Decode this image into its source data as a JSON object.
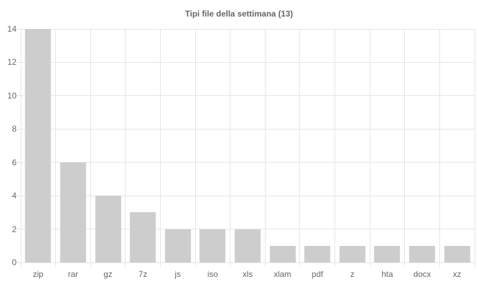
{
  "chart_data": {
    "type": "bar",
    "title": "Tipi file della settimana (13)",
    "categories": [
      "zip",
      "rar",
      "gz",
      "7z",
      "js",
      "iso",
      "xls",
      "xlam",
      "pdf",
      "z",
      "hta",
      "docx",
      "xz"
    ],
    "values": [
      14,
      6,
      4,
      3,
      2,
      2,
      2,
      1,
      1,
      1,
      1,
      1,
      1
    ],
    "xlabel": "",
    "ylabel": "",
    "ylim": [
      0,
      14
    ],
    "ytick_step": 2,
    "yticks": [
      0,
      2,
      4,
      6,
      8,
      10,
      12,
      14
    ],
    "grid": true,
    "legend": "none",
    "colors": {
      "bar_fill": "#cdcdcd",
      "bar_border": "#d9d9d9",
      "gridline": "#e5e5e5",
      "text": "#666666",
      "background": "#ffffff"
    }
  }
}
